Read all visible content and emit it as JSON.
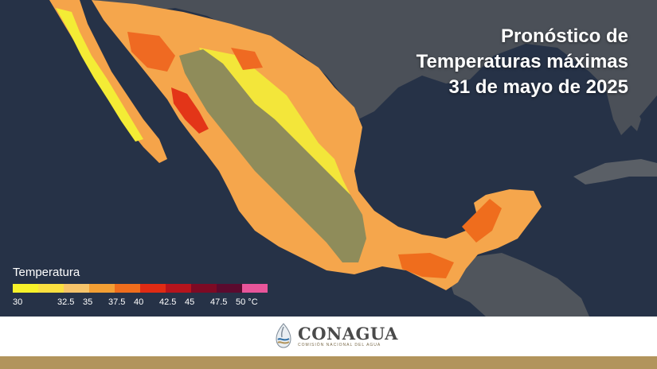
{
  "title": {
    "line1": "Pronóstico de",
    "line2": "Temperaturas máximas",
    "line3": "31 de mayo de 2025"
  },
  "legend": {
    "title": "Temperatura",
    "ticks": [
      "30",
      "32.5",
      "35",
      "37.5",
      "40",
      "42.5",
      "45",
      "47.5",
      "50 °C"
    ],
    "colors": [
      "#f7f22a",
      "#fbe040",
      "#f6c46a",
      "#f39f34",
      "#ef6d1d",
      "#e02b14",
      "#b5141d",
      "#7d0a24",
      "#5b0a2e",
      "#e8559a"
    ]
  },
  "footer": {
    "brand": "CONAGUA",
    "subtitle": "COMISIÓN NACIONAL DEL AGUA"
  },
  "colors": {
    "sea": "#243046",
    "land_dark": "#4a4f55",
    "highland": "#8b8a55",
    "footer_band": "#b2945c",
    "brand_text": "#4a4a4a"
  }
}
